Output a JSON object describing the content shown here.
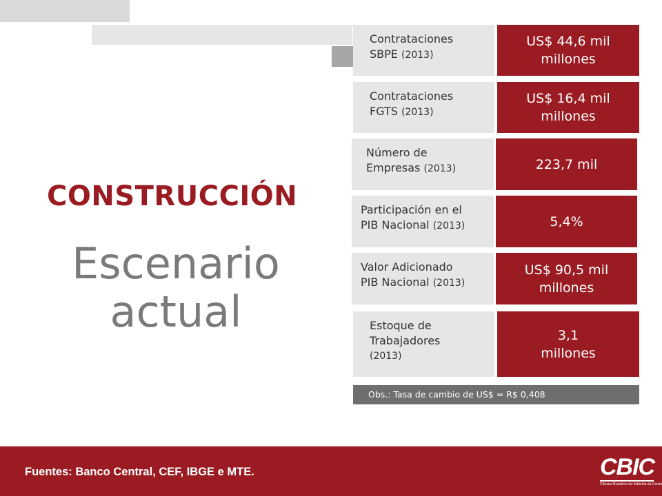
{
  "title": {
    "kicker": "CONSTRUCCIÓN",
    "headline": "Escenario actual"
  },
  "rows": [
    {
      "label_lines": [
        "Contrataciones",
        "SBPE"
      ],
      "year": "(2013)",
      "value_lines": [
        "US$ 44,6 mil",
        "millones"
      ]
    },
    {
      "label_lines": [
        "Contrataciones",
        "FGTS"
      ],
      "year": "(2013)",
      "value_lines": [
        "US$ 16,4 mil",
        "millones"
      ]
    },
    {
      "label_lines": [
        "Número de",
        "Empresas"
      ],
      "year": "(2013)",
      "value_lines": [
        "223,7 mil"
      ]
    },
    {
      "label_lines": [
        "Participación en el",
        "PIB Nacional"
      ],
      "year": "(2013)",
      "value_lines": [
        "5,4%"
      ]
    },
    {
      "label_lines": [
        "Valor Adicionado",
        "PIB Nacional"
      ],
      "year": "(2013)",
      "value_lines": [
        "US$ 90,5 mil",
        "millones"
      ]
    },
    {
      "label_lines": [
        "Estoque de",
        "Trabajadores"
      ],
      "year": "(2013)",
      "value_lines": [
        "3,1",
        "millones"
      ]
    }
  ],
  "note": "Obs.: Tasa de cambio de  US$ = R$ 0,408",
  "footer": {
    "sources": "Fuentes: Banco Central, CEF, IBGE e MTE.",
    "logo_text": "CBIC",
    "logo_subtext": "Câmara Brasileira da Indústria da Construção"
  },
  "colors": {
    "accent": "#9a1b22",
    "label_bg": "#e6e6e6",
    "headline_text": "#7a7a7a",
    "note_bg": "#6f6f6f"
  }
}
